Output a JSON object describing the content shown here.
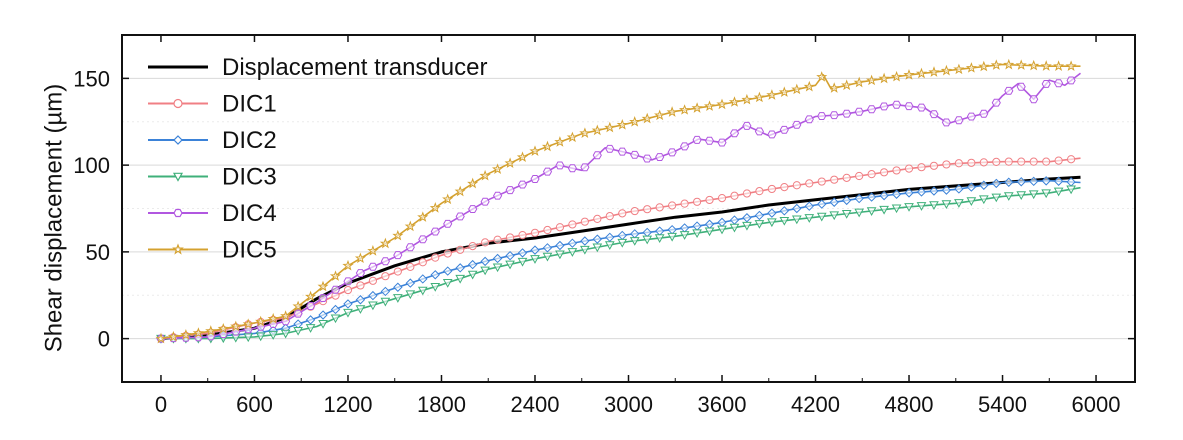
{
  "chart_data": {
    "type": "line",
    "title": "",
    "xlabel": "",
    "ylabel": "Shear displacement (µm)",
    "xlim": [
      -250,
      6250
    ],
    "ylim": [
      -25,
      175
    ],
    "xticks": [
      0,
      600,
      1200,
      1800,
      2400,
      3000,
      3600,
      4200,
      4800,
      5400,
      6000
    ],
    "yticks": [
      0,
      50,
      100,
      150
    ],
    "xtick_labels": [
      "0",
      "600",
      "1200",
      "1800",
      "2400",
      "3000",
      "3600",
      "4200",
      "4800",
      "5400",
      "6000"
    ],
    "ytick_labels": [
      "0",
      "50",
      "100",
      "150"
    ],
    "grid": true,
    "legend_position": "top-left",
    "series": [
      {
        "name": "Displacement transducer",
        "color": "#000000",
        "marker": "none",
        "x": [
          0,
          300,
          600,
          800,
          1000,
          1200,
          1500,
          1800,
          2100,
          2400,
          2700,
          3000,
          3300,
          3600,
          3900,
          4200,
          4500,
          4800,
          5100,
          5400,
          5700,
          5900
        ],
        "y": [
          0,
          2,
          6,
          12,
          23,
          32,
          42,
          50,
          55,
          58,
          62,
          66,
          70,
          73,
          77,
          80,
          83,
          86,
          88,
          90,
          92,
          93
        ]
      },
      {
        "name": "DIC1",
        "color": "#f07f84",
        "marker": "circle",
        "x": [
          0,
          300,
          600,
          800,
          1000,
          1200,
          1500,
          1800,
          2100,
          2400,
          2700,
          3000,
          3300,
          3600,
          3900,
          4200,
          4500,
          4800,
          5100,
          5400,
          5700,
          5900
        ],
        "y": [
          0,
          3,
          9,
          12,
          20,
          28,
          38,
          48,
          56,
          61,
          67,
          73,
          77,
          81,
          86,
          90,
          94,
          98,
          101,
          102,
          102,
          104
        ]
      },
      {
        "name": "DIC2",
        "color": "#3b82d8",
        "marker": "diamond",
        "x": [
          0,
          300,
          600,
          800,
          1000,
          1200,
          1500,
          1800,
          2100,
          2400,
          2700,
          3000,
          3300,
          3600,
          3900,
          4200,
          4500,
          4800,
          5100,
          5400,
          5700,
          5900
        ],
        "y": [
          0,
          1,
          3,
          6,
          12,
          20,
          29,
          38,
          45,
          51,
          56,
          60,
          63,
          67,
          72,
          77,
          81,
          84,
          86,
          90,
          91,
          90
        ]
      },
      {
        "name": "DIC3",
        "color": "#3fb07a",
        "marker": "triangle-down",
        "x": [
          0,
          300,
          600,
          800,
          1000,
          1200,
          1500,
          1800,
          2100,
          2400,
          2700,
          3000,
          3300,
          3600,
          3900,
          4200,
          4500,
          4800,
          5100,
          5400,
          5700,
          5900
        ],
        "y": [
          0,
          0,
          1,
          3,
          7,
          15,
          23,
          31,
          40,
          46,
          51,
          56,
          59,
          63,
          67,
          70,
          73,
          76,
          78,
          82,
          84,
          87
        ]
      },
      {
        "name": "DIC4",
        "color": "#b157e0",
        "marker": "hexagon",
        "x": [
          0,
          300,
          600,
          800,
          1000,
          1200,
          1300,
          1500,
          1800,
          2100,
          2400,
          2550,
          2700,
          2850,
          3000,
          3150,
          3300,
          3450,
          3600,
          3750,
          3900,
          4050,
          4200,
          4350,
          4500,
          4700,
          4900,
          5050,
          5200,
          5300,
          5400,
          5500,
          5600,
          5700,
          5800,
          5900
        ],
        "y": [
          0,
          1,
          6,
          10,
          21,
          33,
          39,
          47,
          64,
          80,
          92,
          100,
          97,
          110,
          107,
          103,
          108,
          115,
          113,
          123,
          117,
          122,
          128,
          129,
          131,
          135,
          133,
          124,
          128,
          130,
          140,
          147,
          138,
          149,
          146,
          153
        ]
      },
      {
        "name": "DIC5",
        "color": "#d4a12f",
        "marker": "star",
        "x": [
          0,
          300,
          600,
          800,
          1000,
          1200,
          1500,
          1800,
          2100,
          2400,
          2700,
          3000,
          3300,
          3600,
          3900,
          4200,
          4250,
          4300,
          4500,
          4800,
          5100,
          5400,
          5700,
          5900
        ],
        "y": [
          0,
          4,
          9,
          13,
          27,
          42,
          58,
          78,
          95,
          108,
          118,
          124,
          131,
          135,
          140,
          146,
          152,
          144,
          148,
          152,
          155,
          158,
          157,
          157
        ]
      }
    ]
  }
}
